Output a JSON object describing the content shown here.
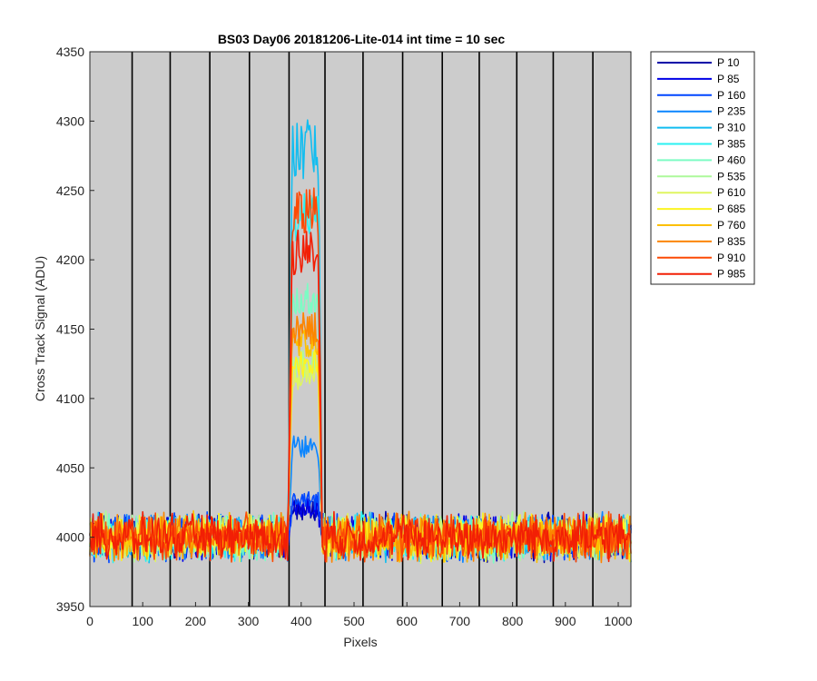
{
  "chart_data": {
    "type": "line",
    "title": "BS03 Day06 20181206-Lite-014 int time = 10 sec",
    "xlabel": "Pixels",
    "ylabel": "Cross Track Signal (ADU)",
    "xlim": [
      0,
      1024
    ],
    "ylim": [
      3950,
      4350
    ],
    "xticks": [
      0,
      100,
      200,
      300,
      400,
      500,
      600,
      700,
      800,
      900,
      1000
    ],
    "yticks": [
      3950,
      4000,
      4050,
      4100,
      4150,
      4200,
      4250,
      4300,
      4350
    ],
    "grid": "vertical",
    "background": "#cccccc",
    "vertical_lines": [
      80,
      152,
      227,
      302,
      377,
      445,
      517,
      592,
      667,
      737,
      808,
      877,
      952
    ],
    "baseline": 4000,
    "noise_amplitude": 12,
    "feature_range": [
      375,
      440
    ],
    "legend_position": "outside-right",
    "series": [
      {
        "name": "P 10",
        "color": "#0000a8",
        "peak": 4020
      },
      {
        "name": "P 85",
        "color": "#0000e6",
        "peak": 4020
      },
      {
        "name": "P 160",
        "color": "#0047ff",
        "peak": 4025
      },
      {
        "name": "P 235",
        "color": "#0a85ff",
        "peak": 4065
      },
      {
        "name": "P 310",
        "color": "#12bdf0",
        "peak": 4280
      },
      {
        "name": "P 385",
        "color": "#2af1f2",
        "peak": 4230
      },
      {
        "name": "P 460",
        "color": "#7dfcc4",
        "peak": 4170
      },
      {
        "name": "P 535",
        "color": "#adf99b",
        "peak": 4125
      },
      {
        "name": "P 610",
        "color": "#dff560",
        "peak": 4115
      },
      {
        "name": "P 685",
        "color": "#fcf421",
        "peak": 4125
      },
      {
        "name": "P 760",
        "color": "#fcbf00",
        "peak": 4140
      },
      {
        "name": "P 835",
        "color": "#fc8500",
        "peak": 4150
      },
      {
        "name": "P 910",
        "color": "#fc4a05",
        "peak": 4235
      },
      {
        "name": "P 985",
        "color": "#f21f05",
        "peak": 4205
      }
    ]
  }
}
